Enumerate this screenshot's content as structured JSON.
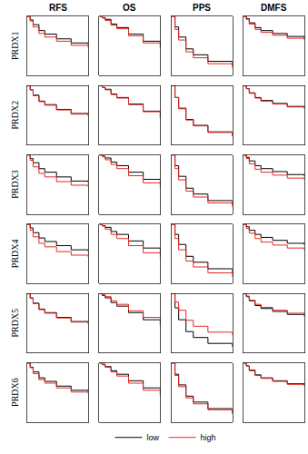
{
  "columns": [
    "RFS",
    "OS",
    "PPS",
    "DMFS"
  ],
  "rows": [
    "PRDX1",
    "PRDX2",
    "PRDX3",
    "PRDX4",
    "PRDX5",
    "PRDX6"
  ],
  "chart_data": [
    {
      "type": "line",
      "x": [
        0,
        12,
        24,
        48,
        72,
        120,
        180,
        250
      ],
      "xlim": [
        0,
        250
      ],
      "ylim": [
        0,
        1
      ],
      "tick_labels": false,
      "series": [
        {
          "name": "low",
          "color": "#000000",
          "values": [
            1,
            0.94,
            0.86,
            0.76,
            0.7,
            0.62,
            0.55,
            0.52
          ]
        },
        {
          "name": "high",
          "color": "#e8271f",
          "values": [
            1,
            0.92,
            0.82,
            0.71,
            0.65,
            0.58,
            0.51,
            0.47
          ]
        }
      ]
    },
    {
      "type": "line",
      "x": [
        0,
        12,
        24,
        48,
        72,
        120,
        180,
        250
      ],
      "xlim": [
        0,
        250
      ],
      "ylim": [
        0,
        1
      ],
      "tick_labels": false,
      "series": [
        {
          "name": "low",
          "color": "#000000",
          "values": [
            1,
            0.98,
            0.95,
            0.87,
            0.81,
            0.7,
            0.58,
            0.48
          ]
        },
        {
          "name": "high",
          "color": "#e8271f",
          "values": [
            1,
            0.97,
            0.93,
            0.85,
            0.79,
            0.67,
            0.55,
            0.46
          ]
        }
      ]
    },
    {
      "type": "line",
      "x": [
        0,
        12,
        24,
        48,
        72,
        120,
        200
      ],
      "xlim": [
        0,
        200
      ],
      "ylim": [
        0,
        1
      ],
      "tick_labels": false,
      "series": [
        {
          "name": "low",
          "color": "#000000",
          "values": [
            1,
            0.82,
            0.65,
            0.45,
            0.35,
            0.24,
            0.16
          ]
        },
        {
          "name": "high",
          "color": "#e8271f",
          "values": [
            1,
            0.78,
            0.6,
            0.4,
            0.3,
            0.2,
            0.13
          ]
        }
      ]
    },
    {
      "type": "line",
      "x": [
        0,
        12,
        24,
        48,
        72,
        120,
        180,
        250
      ],
      "xlim": [
        0,
        250
      ],
      "ylim": [
        0,
        1
      ],
      "tick_labels": false,
      "series": [
        {
          "name": "low",
          "color": "#000000",
          "values": [
            1,
            0.96,
            0.89,
            0.81,
            0.76,
            0.71,
            0.66,
            0.63
          ]
        },
        {
          "name": "high",
          "color": "#e8271f",
          "values": [
            1,
            0.95,
            0.87,
            0.78,
            0.73,
            0.68,
            0.63,
            0.6
          ]
        }
      ]
    },
    {
      "type": "line",
      "x": [
        0,
        12,
        24,
        48,
        72,
        120,
        180,
        250
      ],
      "xlim": [
        0,
        250
      ],
      "ylim": [
        0,
        1
      ],
      "tick_labels": false,
      "series": [
        {
          "name": "low",
          "color": "#000000",
          "values": [
            1,
            0.93,
            0.84,
            0.74,
            0.68,
            0.6,
            0.53,
            0.5
          ]
        },
        {
          "name": "high",
          "color": "#e8271f",
          "values": [
            1,
            0.93,
            0.83,
            0.73,
            0.67,
            0.59,
            0.52,
            0.49
          ]
        }
      ]
    },
    {
      "type": "line",
      "x": [
        0,
        12,
        24,
        48,
        72,
        120,
        180,
        250
      ],
      "xlim": [
        0,
        250
      ],
      "ylim": [
        0,
        1
      ],
      "tick_labels": false,
      "series": [
        {
          "name": "low",
          "color": "#000000",
          "values": [
            1,
            0.97,
            0.94,
            0.86,
            0.8,
            0.69,
            0.57,
            0.47
          ]
        },
        {
          "name": "high",
          "color": "#e8271f",
          "values": [
            1,
            0.97,
            0.93,
            0.85,
            0.79,
            0.68,
            0.56,
            0.45
          ]
        }
      ]
    },
    {
      "type": "line",
      "x": [
        0,
        12,
        24,
        48,
        72,
        120,
        200
      ],
      "xlim": [
        0,
        200
      ],
      "ylim": [
        0,
        1
      ],
      "tick_labels": false,
      "series": [
        {
          "name": "low",
          "color": "#000000",
          "values": [
            1,
            0.8,
            0.62,
            0.43,
            0.33,
            0.22,
            0.15
          ]
        },
        {
          "name": "high",
          "color": "#e8271f",
          "values": [
            1,
            0.8,
            0.61,
            0.42,
            0.32,
            0.21,
            0.14
          ]
        }
      ]
    },
    {
      "type": "line",
      "x": [
        0,
        12,
        24,
        48,
        72,
        120,
        180,
        250
      ],
      "xlim": [
        0,
        250
      ],
      "ylim": [
        0,
        1
      ],
      "tick_labels": false,
      "series": [
        {
          "name": "low",
          "color": "#000000",
          "values": [
            1,
            0.95,
            0.88,
            0.8,
            0.75,
            0.7,
            0.65,
            0.62
          ]
        },
        {
          "name": "high",
          "color": "#e8271f",
          "values": [
            1,
            0.95,
            0.87,
            0.79,
            0.74,
            0.69,
            0.64,
            0.61
          ]
        }
      ]
    },
    {
      "type": "line",
      "x": [
        0,
        12,
        24,
        48,
        72,
        120,
        180,
        250
      ],
      "xlim": [
        0,
        250
      ],
      "ylim": [
        0,
        1
      ],
      "tick_labels": false,
      "series": [
        {
          "name": "low",
          "color": "#000000",
          "values": [
            1,
            0.94,
            0.87,
            0.77,
            0.71,
            0.63,
            0.56,
            0.53
          ]
        },
        {
          "name": "high",
          "color": "#e8271f",
          "values": [
            1,
            0.91,
            0.8,
            0.69,
            0.63,
            0.55,
            0.49,
            0.46
          ]
        }
      ]
    },
    {
      "type": "line",
      "x": [
        0,
        12,
        24,
        48,
        72,
        120,
        180,
        250
      ],
      "xlim": [
        0,
        250
      ],
      "ylim": [
        0,
        1
      ],
      "tick_labels": false,
      "series": [
        {
          "name": "low",
          "color": "#000000",
          "values": [
            1,
            0.98,
            0.95,
            0.88,
            0.82,
            0.71,
            0.59,
            0.5
          ]
        },
        {
          "name": "high",
          "color": "#e8271f",
          "values": [
            1,
            0.97,
            0.92,
            0.84,
            0.77,
            0.65,
            0.53,
            0.44
          ]
        }
      ]
    },
    {
      "type": "line",
      "x": [
        0,
        12,
        24,
        48,
        72,
        120,
        200
      ],
      "xlim": [
        0,
        200
      ],
      "ylim": [
        0,
        1
      ],
      "tick_labels": false,
      "series": [
        {
          "name": "low",
          "color": "#000000",
          "values": [
            1,
            0.82,
            0.64,
            0.44,
            0.34,
            0.23,
            0.15
          ]
        },
        {
          "name": "high",
          "color": "#e8271f",
          "values": [
            1,
            0.77,
            0.58,
            0.39,
            0.29,
            0.19,
            0.12
          ]
        }
      ]
    },
    {
      "type": "line",
      "x": [
        0,
        12,
        24,
        48,
        72,
        120,
        180,
        250
      ],
      "xlim": [
        0,
        250
      ],
      "ylim": [
        0,
        1
      ],
      "tick_labels": false,
      "series": [
        {
          "name": "low",
          "color": "#000000",
          "values": [
            1,
            0.96,
            0.9,
            0.82,
            0.77,
            0.72,
            0.67,
            0.64
          ]
        },
        {
          "name": "high",
          "color": "#e8271f",
          "values": [
            1,
            0.94,
            0.85,
            0.76,
            0.71,
            0.66,
            0.61,
            0.58
          ]
        }
      ]
    },
    {
      "type": "line",
      "x": [
        0,
        12,
        24,
        48,
        72,
        120,
        180,
        250
      ],
      "xlim": [
        0,
        250
      ],
      "ylim": [
        0,
        1
      ],
      "tick_labels": false,
      "series": [
        {
          "name": "low",
          "color": "#000000",
          "values": [
            1,
            0.94,
            0.86,
            0.77,
            0.71,
            0.64,
            0.57,
            0.54
          ]
        },
        {
          "name": "high",
          "color": "#e8271f",
          "values": [
            1,
            0.9,
            0.79,
            0.68,
            0.62,
            0.54,
            0.48,
            0.45
          ]
        }
      ]
    },
    {
      "type": "line",
      "x": [
        0,
        12,
        24,
        48,
        72,
        120,
        180,
        250
      ],
      "xlim": [
        0,
        250
      ],
      "ylim": [
        0,
        1
      ],
      "tick_labels": false,
      "series": [
        {
          "name": "low",
          "color": "#000000",
          "values": [
            1,
            0.98,
            0.95,
            0.88,
            0.83,
            0.72,
            0.6,
            0.5
          ]
        },
        {
          "name": "high",
          "color": "#e8271f",
          "values": [
            1,
            0.97,
            0.92,
            0.83,
            0.76,
            0.64,
            0.52,
            0.42
          ]
        }
      ]
    },
    {
      "type": "line",
      "x": [
        0,
        12,
        24,
        48,
        72,
        120,
        200
      ],
      "xlim": [
        0,
        200
      ],
      "ylim": [
        0,
        1
      ],
      "tick_labels": false,
      "series": [
        {
          "name": "low",
          "color": "#000000",
          "values": [
            1,
            0.83,
            0.66,
            0.46,
            0.36,
            0.25,
            0.17
          ]
        },
        {
          "name": "high",
          "color": "#e8271f",
          "values": [
            1,
            0.76,
            0.57,
            0.38,
            0.28,
            0.18,
            0.11
          ]
        }
      ]
    },
    {
      "type": "line",
      "x": [
        0,
        12,
        24,
        48,
        72,
        120,
        180,
        250
      ],
      "xlim": [
        0,
        250
      ],
      "ylim": [
        0,
        1
      ],
      "tick_labels": false,
      "series": [
        {
          "name": "low",
          "color": "#000000",
          "values": [
            1,
            0.96,
            0.9,
            0.83,
            0.78,
            0.73,
            0.68,
            0.65
          ]
        },
        {
          "name": "high",
          "color": "#e8271f",
          "values": [
            1,
            0.93,
            0.85,
            0.76,
            0.7,
            0.65,
            0.6,
            0.57
          ]
        }
      ]
    },
    {
      "type": "line",
      "x": [
        0,
        12,
        24,
        48,
        72,
        120,
        180,
        250
      ],
      "xlim": [
        0,
        250
      ],
      "ylim": [
        0,
        1
      ],
      "tick_labels": false,
      "series": [
        {
          "name": "low",
          "color": "#000000",
          "values": [
            1,
            0.93,
            0.84,
            0.74,
            0.68,
            0.6,
            0.53,
            0.5
          ]
        },
        {
          "name": "high",
          "color": "#e8271f",
          "values": [
            1,
            0.92,
            0.83,
            0.73,
            0.67,
            0.59,
            0.52,
            0.49
          ]
        }
      ]
    },
    {
      "type": "line",
      "x": [
        0,
        12,
        24,
        48,
        72,
        120,
        180,
        250
      ],
      "xlim": [
        0,
        250
      ],
      "ylim": [
        0,
        1
      ],
      "tick_labels": false,
      "series": [
        {
          "name": "low",
          "color": "#000000",
          "values": [
            1,
            0.97,
            0.93,
            0.85,
            0.79,
            0.68,
            0.56,
            0.46
          ]
        },
        {
          "name": "high",
          "color": "#e8271f",
          "values": [
            1,
            0.98,
            0.95,
            0.88,
            0.82,
            0.71,
            0.6,
            0.5
          ]
        }
      ]
    },
    {
      "type": "line",
      "x": [
        0,
        12,
        24,
        48,
        72,
        120,
        200
      ],
      "xlim": [
        0,
        200
      ],
      "ylim": [
        0,
        1
      ],
      "tick_labels": false,
      "series": [
        {
          "name": "low",
          "color": "#000000",
          "values": [
            1,
            0.76,
            0.56,
            0.36,
            0.26,
            0.16,
            0.1
          ]
        },
        {
          "name": "high",
          "color": "#e8271f",
          "values": [
            1,
            0.86,
            0.72,
            0.55,
            0.45,
            0.35,
            0.3
          ]
        }
      ]
    },
    {
      "type": "line",
      "x": [
        0,
        12,
        24,
        48,
        72,
        120,
        180,
        250
      ],
      "xlim": [
        0,
        250
      ],
      "ylim": [
        0,
        1
      ],
      "tick_labels": false,
      "series": [
        {
          "name": "low",
          "color": "#000000",
          "values": [
            1,
            0.95,
            0.88,
            0.8,
            0.75,
            0.7,
            0.65,
            0.62
          ]
        },
        {
          "name": "high",
          "color": "#e8271f",
          "values": [
            1,
            0.96,
            0.89,
            0.82,
            0.77,
            0.72,
            0.67,
            0.64
          ]
        }
      ]
    },
    {
      "type": "line",
      "x": [
        0,
        12,
        24,
        48,
        72,
        120,
        180,
        250
      ],
      "xlim": [
        0,
        250
      ],
      "ylim": [
        0,
        1
      ],
      "tick_labels": false,
      "series": [
        {
          "name": "low",
          "color": "#000000",
          "values": [
            1,
            0.93,
            0.85,
            0.75,
            0.69,
            0.61,
            0.54,
            0.51
          ]
        },
        {
          "name": "high",
          "color": "#e8271f",
          "values": [
            1,
            0.92,
            0.82,
            0.72,
            0.66,
            0.58,
            0.51,
            0.48
          ]
        }
      ]
    },
    {
      "type": "line",
      "x": [
        0,
        12,
        24,
        48,
        72,
        120,
        180,
        250
      ],
      "xlim": [
        0,
        250
      ],
      "ylim": [
        0,
        1
      ],
      "tick_labels": false,
      "series": [
        {
          "name": "low",
          "color": "#000000",
          "values": [
            1,
            0.98,
            0.94,
            0.87,
            0.81,
            0.7,
            0.58,
            0.48
          ]
        },
        {
          "name": "high",
          "color": "#e8271f",
          "values": [
            1,
            0.97,
            0.93,
            0.85,
            0.78,
            0.66,
            0.54,
            0.44
          ]
        }
      ]
    },
    {
      "type": "line",
      "x": [
        0,
        12,
        24,
        48,
        72,
        120,
        200
      ],
      "xlim": [
        0,
        200
      ],
      "ylim": [
        0,
        1
      ],
      "tick_labels": false,
      "series": [
        {
          "name": "low",
          "color": "#000000",
          "values": [
            1,
            0.81,
            0.63,
            0.44,
            0.34,
            0.23,
            0.15
          ]
        },
        {
          "name": "high",
          "color": "#e8271f",
          "values": [
            1,
            0.79,
            0.6,
            0.41,
            0.31,
            0.21,
            0.14
          ]
        }
      ]
    },
    {
      "type": "line",
      "x": [
        0,
        12,
        24,
        48,
        72,
        120,
        180,
        250
      ],
      "xlim": [
        0,
        250
      ],
      "ylim": [
        0,
        1
      ],
      "tick_labels": false,
      "series": [
        {
          "name": "low",
          "color": "#000000",
          "values": [
            1,
            0.95,
            0.88,
            0.8,
            0.75,
            0.7,
            0.65,
            0.62
          ]
        },
        {
          "name": "high",
          "color": "#e8271f",
          "values": [
            1,
            0.95,
            0.87,
            0.79,
            0.74,
            0.69,
            0.64,
            0.61
          ]
        }
      ]
    }
  ]
}
